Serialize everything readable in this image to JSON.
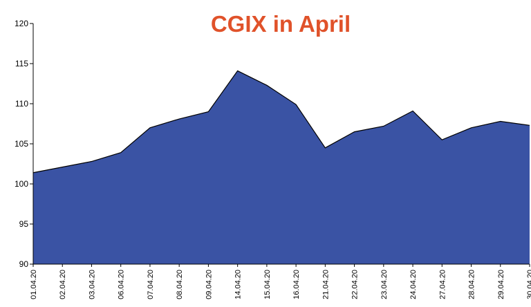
{
  "chart_data": {
    "type": "area",
    "title": "CGIX in April",
    "categories": [
      "01.04.20",
      "02.04.20",
      "03.04.20",
      "06.04.20",
      "07.04.20",
      "08.04.20",
      "09.04.20",
      "14.04.20",
      "15.04.20",
      "16.04.20",
      "21.04.20",
      "22.04.20",
      "23.04.20",
      "24.04.20",
      "27.04.20",
      "28.04.20",
      "29.04.20",
      "30.04.20"
    ],
    "values": [
      101.4,
      102.1,
      102.8,
      103.9,
      107.0,
      108.1,
      109.0,
      114.1,
      112.3,
      109.9,
      104.5,
      106.5,
      107.2,
      109.1,
      105.5,
      107.0,
      107.8,
      107.3
    ],
    "color": "#3a53a4",
    "ylim": [
      90,
      120
    ],
    "yticks": [
      90,
      95,
      100,
      105,
      110,
      115,
      120
    ]
  }
}
